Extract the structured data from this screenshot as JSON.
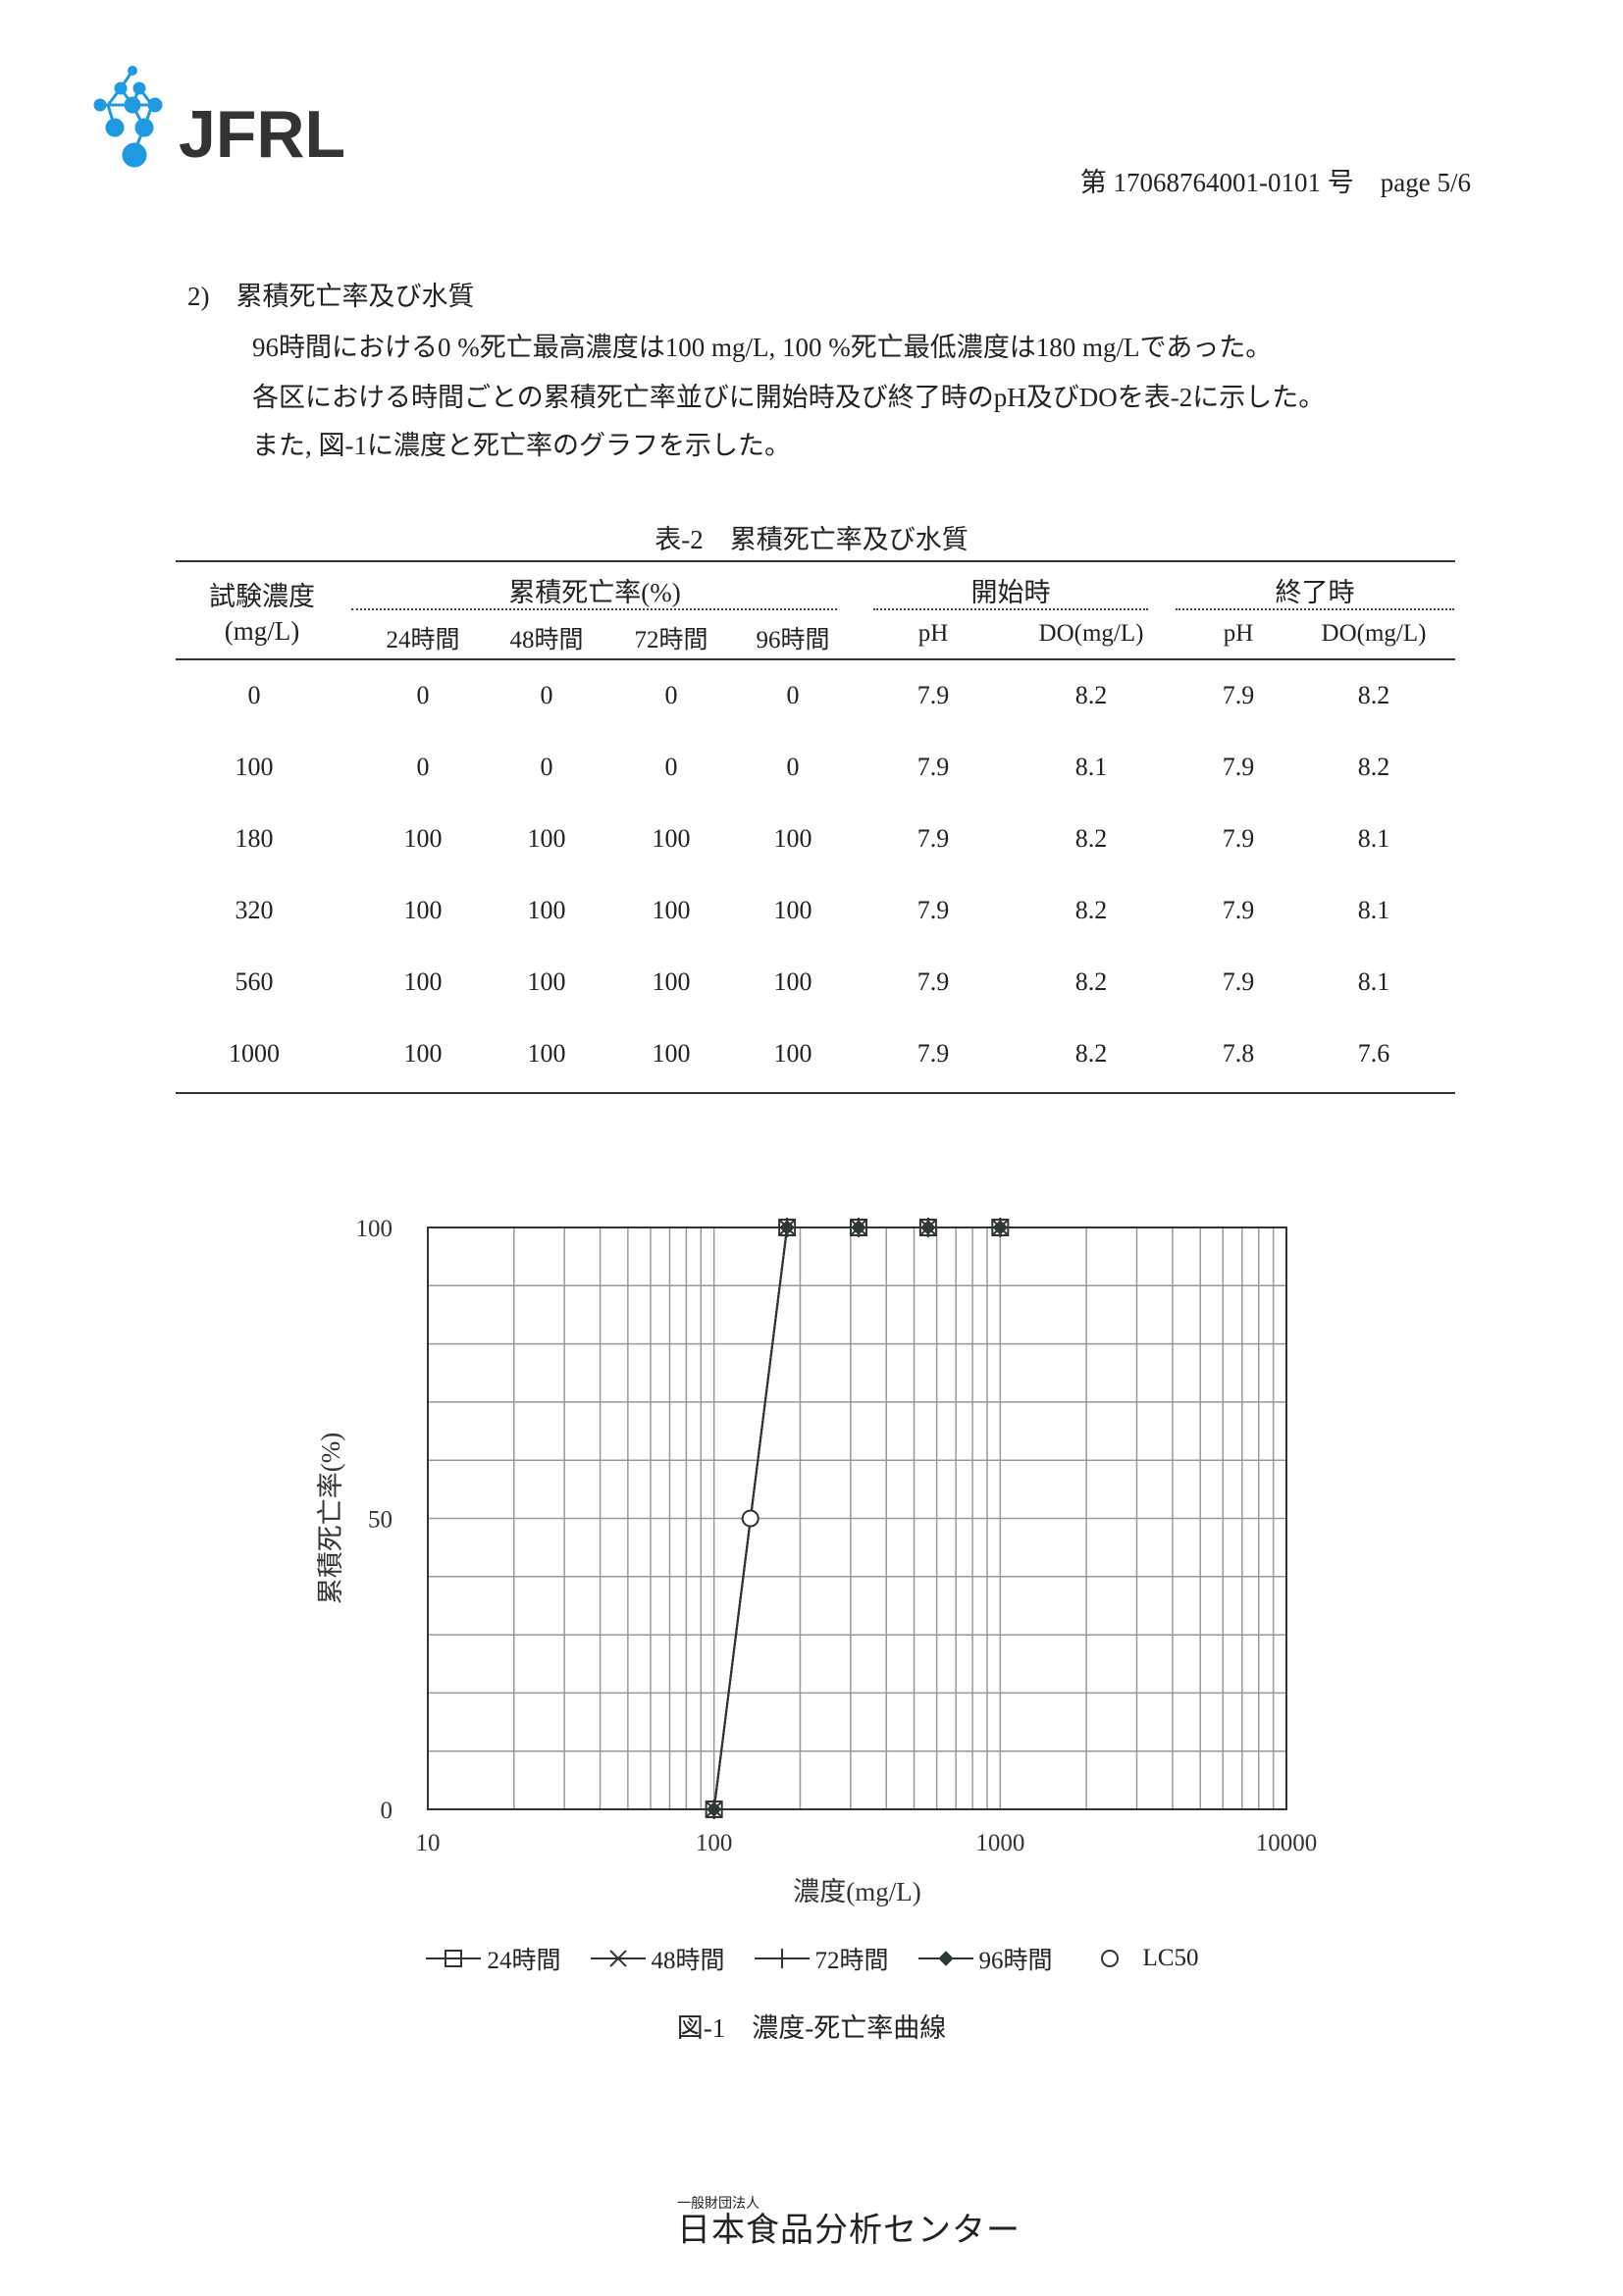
{
  "header": {
    "logo_text": "JFRL",
    "brand_color": "#1f9ae0",
    "doc_number": "第 17068764001-0101 号　page 5/6"
  },
  "section": {
    "heading": "2)　累積死亡率及び水質",
    "paragraphs": [
      "96時間における0 %死亡最高濃度は100 mg/L, 100 %死亡最低濃度は180 mg/Lであった。",
      "各区における時間ごとの累積死亡率並びに開始時及び終了時のpH及びDOを表-2に示した。",
      "また, 図-1に濃度と死亡率のグラフを示した。"
    ]
  },
  "table": {
    "title": "表-2　累積死亡率及び水質",
    "group_headers": {
      "conc": "試験濃度",
      "conc_unit": "(mg/L)",
      "mortality": "累積死亡率(%)",
      "start": "開始時",
      "end": "終了時"
    },
    "sub_headers": [
      "24時間",
      "48時間",
      "72時間",
      "96時間",
      "pH",
      "DO(mg/L)",
      "pH",
      "DO(mg/L)"
    ],
    "rows": [
      [
        "0",
        "0",
        "0",
        "0",
        "0",
        "7.9",
        "8.2",
        "7.9",
        "8.2"
      ],
      [
        "100",
        "0",
        "0",
        "0",
        "0",
        "7.9",
        "8.1",
        "7.9",
        "8.2"
      ],
      [
        "180",
        "100",
        "100",
        "100",
        "100",
        "7.9",
        "8.2",
        "7.9",
        "8.1"
      ],
      [
        "320",
        "100",
        "100",
        "100",
        "100",
        "7.9",
        "8.2",
        "7.9",
        "8.1"
      ],
      [
        "560",
        "100",
        "100",
        "100",
        "100",
        "7.9",
        "8.2",
        "7.9",
        "8.1"
      ],
      [
        "1000",
        "100",
        "100",
        "100",
        "100",
        "7.9",
        "8.2",
        "7.8",
        "7.6"
      ]
    ]
  },
  "chart_data": {
    "type": "scatter",
    "title": "",
    "xlabel": "濃度(mg/L)",
    "ylabel": "累積死亡率(%)",
    "xscale": "log",
    "xlim": [
      10,
      10000
    ],
    "ylim": [
      0,
      100
    ],
    "xticks": [
      "10",
      "100",
      "1000",
      "10000"
    ],
    "yticks": [
      "0",
      "50",
      "100"
    ],
    "grid": true,
    "legend_position": "bottom",
    "series": [
      {
        "name": "24時間",
        "marker": "square",
        "x": [
          100,
          180,
          320,
          560,
          1000
        ],
        "y": [
          0,
          100,
          100,
          100,
          100
        ]
      },
      {
        "name": "48時間",
        "marker": "x",
        "x": [
          100,
          180,
          320,
          560,
          1000
        ],
        "y": [
          0,
          100,
          100,
          100,
          100
        ]
      },
      {
        "name": "72時間",
        "marker": "plus",
        "x": [
          100,
          180,
          320,
          560,
          1000
        ],
        "y": [
          0,
          100,
          100,
          100,
          100
        ]
      },
      {
        "name": "96時間",
        "marker": "diamond",
        "x": [
          100,
          180,
          320,
          560,
          1000
        ],
        "y": [
          0,
          100,
          100,
          100,
          100
        ]
      },
      {
        "name": "LC50",
        "marker": "circle",
        "x": [
          134
        ],
        "y": [
          50
        ]
      }
    ],
    "caption": "図-1　濃度-死亡率曲線"
  },
  "footer": {
    "org_type": "一般財団法人",
    "org_name": "日本食品分析センター"
  }
}
